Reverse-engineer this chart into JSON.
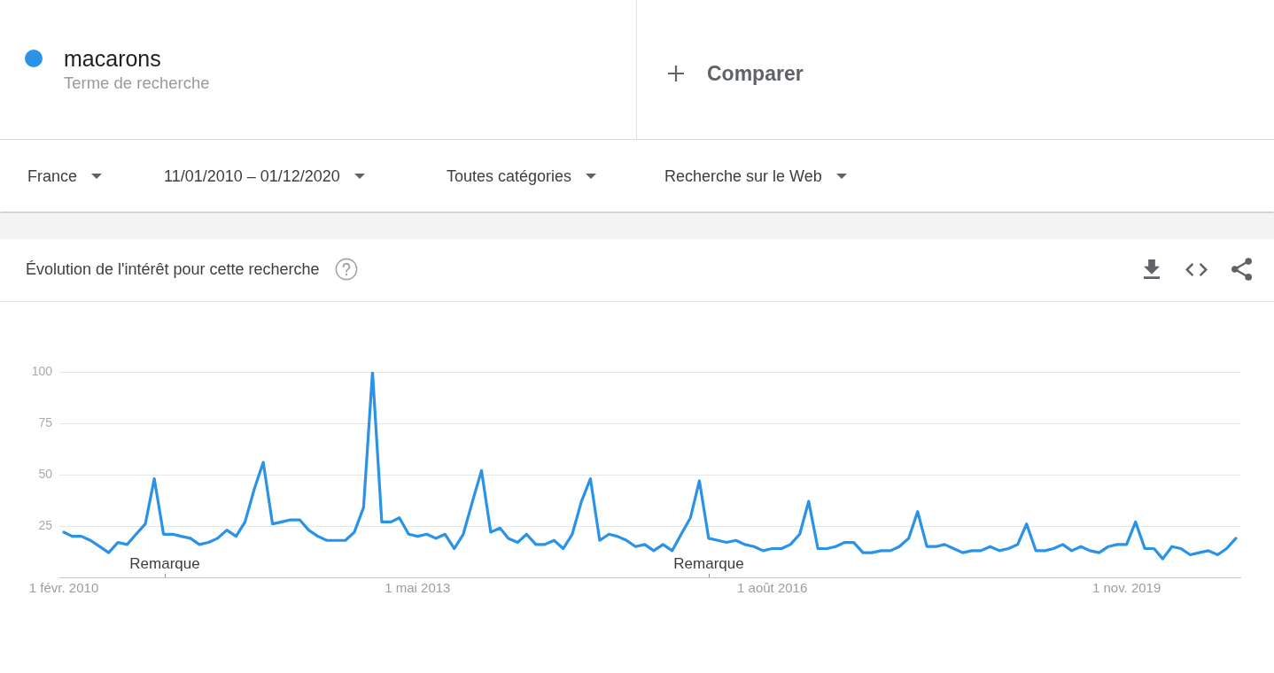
{
  "chart_data": {
    "type": "line",
    "title": "Évolution de l'intérêt pour cette recherche",
    "x": [
      "2010-02",
      "2010-03",
      "2010-04",
      "2010-05",
      "2010-06",
      "2010-07",
      "2010-08",
      "2010-09",
      "2010-10",
      "2010-11",
      "2010-12",
      "2011-01",
      "2011-02",
      "2011-03",
      "2011-04",
      "2011-05",
      "2011-06",
      "2011-07",
      "2011-08",
      "2011-09",
      "2011-10",
      "2011-11",
      "2011-12",
      "2012-01",
      "2012-02",
      "2012-03",
      "2012-04",
      "2012-05",
      "2012-06",
      "2012-07",
      "2012-08",
      "2012-09",
      "2012-10",
      "2012-11",
      "2012-12",
      "2013-01",
      "2013-02",
      "2013-03",
      "2013-04",
      "2013-05",
      "2013-06",
      "2013-07",
      "2013-08",
      "2013-09",
      "2013-10",
      "2013-11",
      "2013-12",
      "2014-01",
      "2014-02",
      "2014-03",
      "2014-04",
      "2014-05",
      "2014-06",
      "2014-07",
      "2014-08",
      "2014-09",
      "2014-10",
      "2014-11",
      "2014-12",
      "2015-01",
      "2015-02",
      "2015-03",
      "2015-04",
      "2015-05",
      "2015-06",
      "2015-07",
      "2015-08",
      "2015-09",
      "2015-10",
      "2015-11",
      "2015-12",
      "2016-01",
      "2016-02",
      "2016-03",
      "2016-04",
      "2016-05",
      "2016-06",
      "2016-07",
      "2016-08",
      "2016-09",
      "2016-10",
      "2016-11",
      "2016-12",
      "2017-01",
      "2017-02",
      "2017-03",
      "2017-04",
      "2017-05",
      "2017-06",
      "2017-07",
      "2017-08",
      "2017-09",
      "2017-10",
      "2017-11",
      "2017-12",
      "2018-01",
      "2018-02",
      "2018-03",
      "2018-04",
      "2018-05",
      "2018-06",
      "2018-07",
      "2018-08",
      "2018-09",
      "2018-10",
      "2018-11",
      "2018-12",
      "2019-01",
      "2019-02",
      "2019-03",
      "2019-04",
      "2019-05",
      "2019-06",
      "2019-07",
      "2019-08",
      "2019-09",
      "2019-10",
      "2019-11",
      "2019-12",
      "2020-01",
      "2020-02",
      "2020-03",
      "2020-04",
      "2020-05",
      "2020-06",
      "2020-07",
      "2020-08",
      "2020-09",
      "2020-10",
      "2020-11"
    ],
    "series": [
      {
        "name": "macarons",
        "color": "#2a93e8",
        "values": [
          22,
          20,
          20,
          18,
          15,
          12,
          17,
          16,
          21,
          26,
          48,
          21,
          21,
          20,
          19,
          16,
          17,
          19,
          23,
          20,
          27,
          43,
          56,
          26,
          27,
          28,
          28,
          23,
          20,
          18,
          18,
          18,
          22,
          34,
          100,
          27,
          27,
          29,
          21,
          20,
          21,
          19,
          21,
          14,
          21,
          37,
          52,
          22,
          24,
          19,
          17,
          21,
          16,
          16,
          18,
          14,
          21,
          37,
          48,
          18,
          21,
          20,
          18,
          15,
          16,
          13,
          16,
          13,
          21,
          29,
          47,
          19,
          18,
          17,
          18,
          16,
          15,
          13,
          14,
          14,
          16,
          21,
          37,
          14,
          14,
          15,
          17,
          17,
          12,
          12,
          13,
          13,
          15,
          19,
          32,
          15,
          15,
          16,
          14,
          12,
          13,
          13,
          15,
          13,
          14,
          16,
          26,
          13,
          13,
          14,
          16,
          13,
          15,
          13,
          12,
          15,
          16,
          16,
          27,
          14,
          14,
          9,
          15,
          14,
          11,
          12,
          13,
          11,
          14,
          19
        ]
      }
    ],
    "xlim": [
      "2010-01-17",
      "2020-11-16"
    ],
    "xticks": [
      {
        "value": "2010-02-01",
        "label": "1 févr. 2010"
      },
      {
        "value": "2013-05-01",
        "label": "1 mai 2013"
      },
      {
        "value": "2016-08-01",
        "label": "1 août 2016"
      },
      {
        "value": "2019-11-01",
        "label": "1 nov. 2019"
      }
    ],
    "ylim": [
      0,
      100
    ],
    "yticks": [
      25,
      50,
      75,
      100
    ],
    "grid": "y",
    "legend": "top left",
    "annotations": [
      "Terme de recherche",
      "Comparer",
      "France",
      "11/01/2010 – 01/12/2020",
      "Toutes catégories",
      "Recherche sur le Web",
      "Remarque",
      "Remarque"
    ]
  }
}
